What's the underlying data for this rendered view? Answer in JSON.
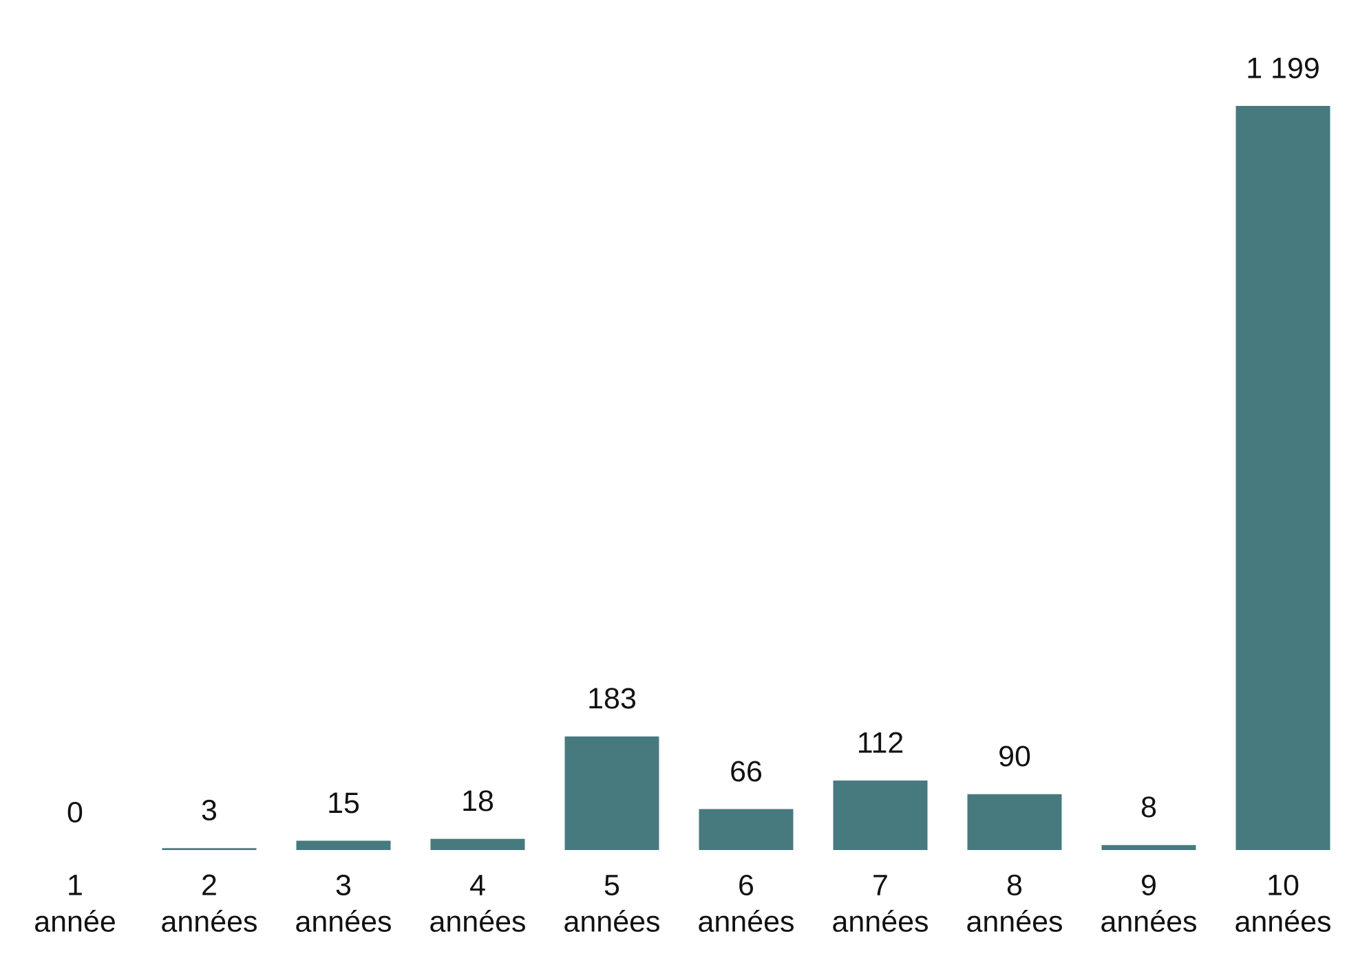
{
  "chart_data": {
    "type": "bar",
    "categories": [
      [
        "1",
        "année"
      ],
      [
        "2",
        "années"
      ],
      [
        "3",
        "années"
      ],
      [
        "4",
        "années"
      ],
      [
        "5",
        "années"
      ],
      [
        "6",
        "années"
      ],
      [
        "7",
        "années"
      ],
      [
        "8",
        "années"
      ],
      [
        "9",
        "années"
      ],
      [
        "10",
        "années"
      ]
    ],
    "values": [
      0,
      3,
      15,
      18,
      183,
      66,
      112,
      90,
      8,
      1199
    ],
    "value_labels": [
      "0",
      "3",
      "15",
      "18",
      "183",
      "66",
      "112",
      "90",
      "8",
      "1 199"
    ],
    "color": "#477a7f"
  }
}
